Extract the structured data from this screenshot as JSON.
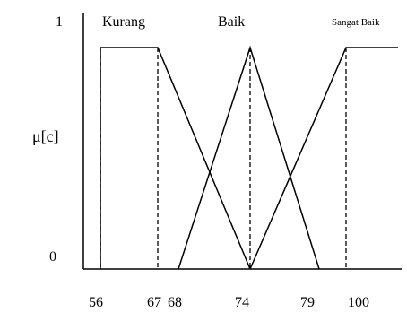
{
  "chart_data": {
    "type": "line",
    "title": "",
    "ylabel": "μ[c]",
    "xlabel": "",
    "y_ticks": [
      "0",
      "1"
    ],
    "x_ticks": [
      "56",
      "67",
      "68",
      "74",
      "79",
      "100"
    ],
    "series": [
      {
        "name": "Kurang",
        "x": [
          "56",
          "56",
          "67",
          "74"
        ],
        "y": [
          0,
          1,
          1,
          0
        ]
      },
      {
        "name": "Baik",
        "x": [
          "68",
          "74",
          "79"
        ],
        "y": [
          0,
          1,
          0
        ]
      },
      {
        "name": "Sangat Baik",
        "x": [
          "74",
          "100",
          "100+"
        ],
        "y": [
          0,
          1,
          1
        ]
      }
    ],
    "dashed_lines_at": [
      "56",
      "67",
      "74",
      "100"
    ]
  }
}
